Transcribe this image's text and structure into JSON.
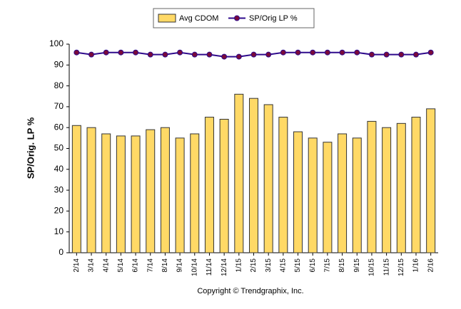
{
  "chart_data": {
    "type": "bar",
    "categories": [
      "2/14",
      "3/14",
      "4/14",
      "5/14",
      "6/14",
      "7/14",
      "8/14",
      "9/14",
      "10/14",
      "11/14",
      "12/14",
      "1/15",
      "2/15",
      "3/15",
      "4/15",
      "5/15",
      "6/15",
      "7/15",
      "8/15",
      "9/15",
      "10/15",
      "11/15",
      "12/15",
      "1/16",
      "2/16"
    ],
    "series": [
      {
        "name": "Avg CDOM",
        "type": "bar",
        "color": "#ffd966",
        "values": [
          61,
          60,
          57,
          56,
          56,
          59,
          60,
          55,
          57,
          65,
          64,
          76,
          74,
          71,
          65,
          58,
          55,
          53,
          57,
          55,
          63,
          60,
          62,
          65,
          69
        ]
      },
      {
        "name": "SP/Orig LP %",
        "type": "line",
        "color": "#2e0a8c",
        "marker_color": "#7a0a3a",
        "values": [
          96,
          95,
          96,
          96,
          96,
          95,
          95,
          96,
          95,
          95,
          94,
          94,
          95,
          95,
          96,
          96,
          96,
          96,
          96,
          96,
          95,
          95,
          95,
          95,
          96
        ]
      }
    ],
    "ylabel": "SP/Orig. LP %",
    "ylim": [
      0,
      100
    ],
    "yticks": [
      0,
      10,
      20,
      30,
      40,
      50,
      60,
      70,
      80,
      90,
      100
    ],
    "grid": false,
    "footer": "Copyright © Trendgraphix, Inc."
  }
}
